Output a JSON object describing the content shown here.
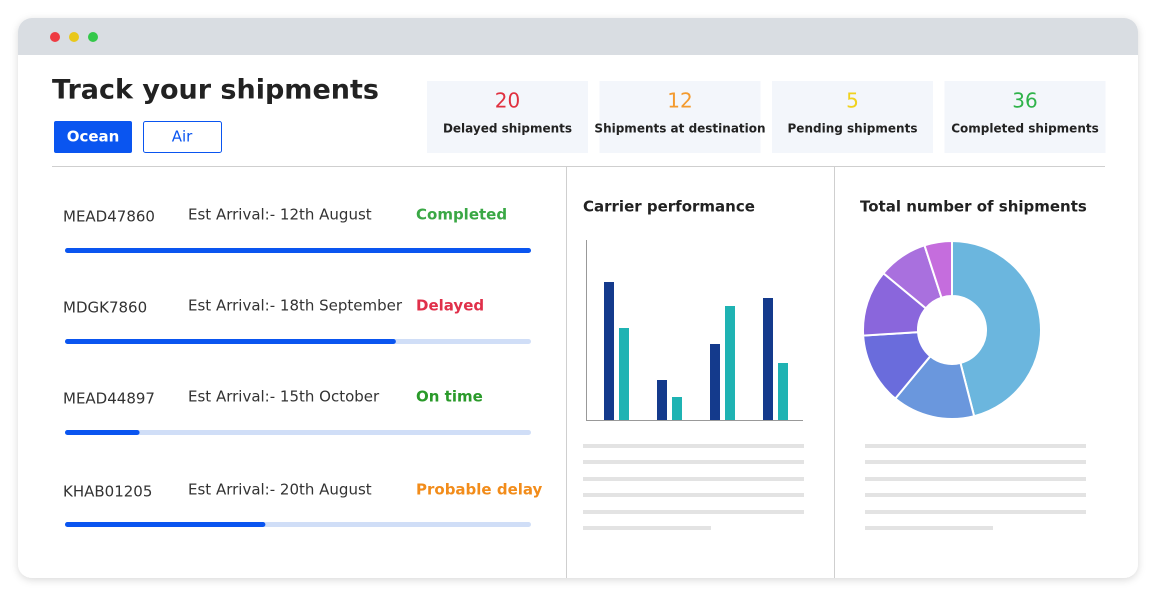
{
  "header": {
    "title": "Track your shipments",
    "tabs": [
      "Ocean",
      "Air"
    ]
  },
  "stats": [
    {
      "value": 20,
      "label": "Delayed shipments",
      "color": "#e0303f"
    },
    {
      "value": 12,
      "label": "Shipments at destination",
      "color": "#f39a2e"
    },
    {
      "value": 5,
      "label": "Pending shipments",
      "color": "#f0d21e"
    },
    {
      "value": 36,
      "label": "Completed shipments",
      "color": "#2fb34a"
    }
  ],
  "shipments": [
    {
      "id": "MEAD47860",
      "arrival": "Est Arrival:- 12th August",
      "status": "Completed",
      "status_color": "#3aa845",
      "progress": 100
    },
    {
      "id": "MDGK7860",
      "arrival": "Est Arrival:- 18th September",
      "status": "Delayed",
      "status_color": "#e0304a",
      "progress": 71
    },
    {
      "id": "MEAD44897",
      "arrival": "Est Arrival:- 15th October",
      "status": "On time",
      "status_color": "#2a9a2a",
      "progress": 16
    },
    {
      "id": "KHAB01205",
      "arrival": "Est Arrival:- 20th August",
      "status": "Probable delay",
      "status_color": "#f28c1a",
      "progress": 43
    }
  ],
  "carrier_chart": {
    "type": "bar",
    "title": "Carrier performance",
    "series": [
      {
        "color": "#143a8c",
        "values": [
          138,
          40,
          76,
          122
        ]
      },
      {
        "color": "#1fb3b3",
        "values": [
          92,
          23,
          114,
          57
        ]
      }
    ],
    "ylim": [
      0,
      180
    ]
  },
  "shipments_chart": {
    "type": "pie",
    "title": "Total number of shipments",
    "values": [
      46,
      15,
      13,
      12,
      9,
      5
    ],
    "colors": [
      "#6bb6de",
      "#6a97dd",
      "#6a6cdc",
      "#8a66dc",
      "#a970de",
      "#c56ddd"
    ]
  }
}
